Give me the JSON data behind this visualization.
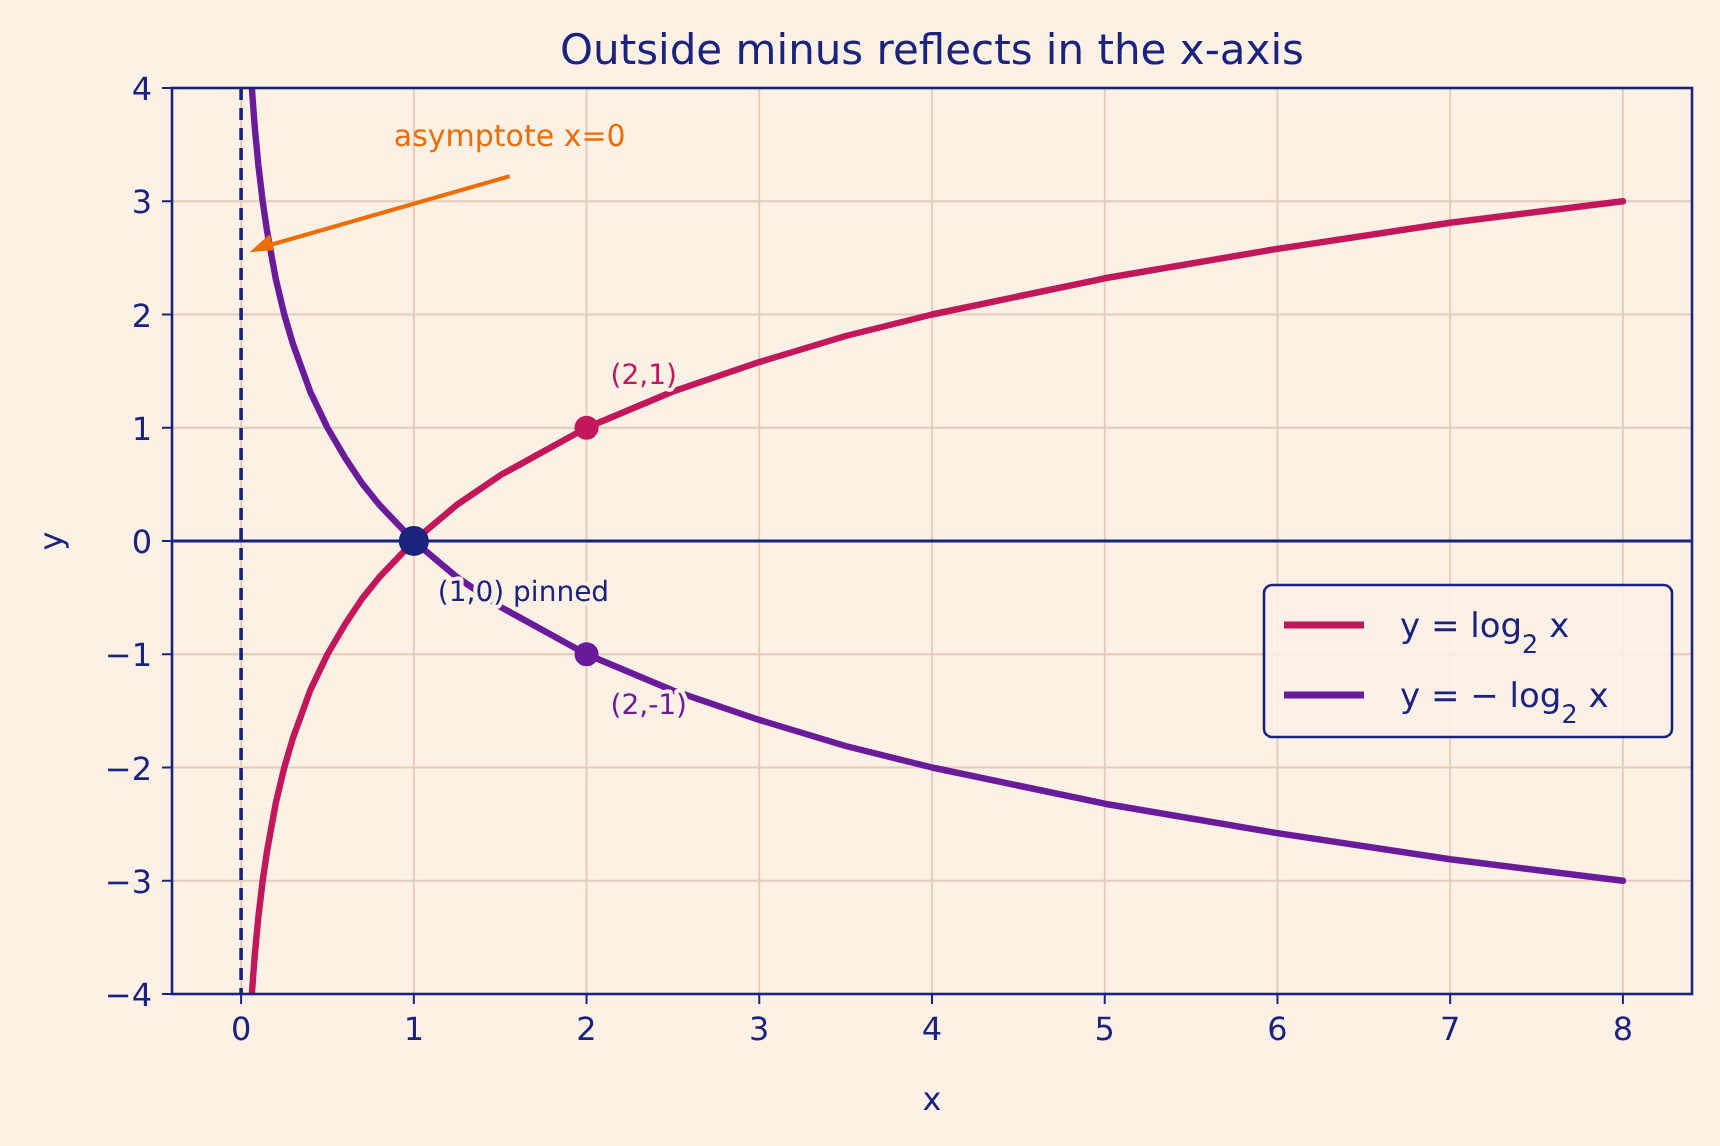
{
  "chart_data": {
    "type": "line",
    "title": "Outside minus reflects in the x-axis",
    "xlabel": "x",
    "ylabel": "y",
    "xlim": [
      -0.4,
      8.4
    ],
    "ylim": [
      -4,
      4
    ],
    "xticks": [
      0,
      1,
      2,
      3,
      4,
      5,
      6,
      7,
      8
    ],
    "yticks": [
      -4,
      -3,
      -2,
      -1,
      0,
      1,
      2,
      3,
      4
    ],
    "grid": true,
    "legend": "right",
    "series": [
      {
        "name": "y = log$_{2}$ x",
        "color": "#c2185b",
        "x": [
          0.0625,
          0.07,
          0.08,
          0.1,
          0.125,
          0.15,
          0.2,
          0.25,
          0.3,
          0.4,
          0.5,
          0.6,
          0.7,
          0.8,
          1,
          1.25,
          1.5,
          2,
          2.5,
          3,
          3.5,
          4,
          5,
          6,
          7,
          8
        ],
        "values": [
          -4,
          -3.84,
          -3.64,
          -3.32,
          -3,
          -2.74,
          -2.32,
          -2,
          -1.74,
          -1.32,
          -1,
          -0.74,
          -0.51,
          -0.32,
          0,
          0.32,
          0.58,
          1,
          1.32,
          1.58,
          1.81,
          2,
          2.32,
          2.58,
          2.81,
          3
        ]
      },
      {
        "name": "y = − log$_{2}$ x",
        "color": "#6a1b9a",
        "x": [
          0.0625,
          0.07,
          0.08,
          0.1,
          0.125,
          0.15,
          0.2,
          0.25,
          0.3,
          0.4,
          0.5,
          0.6,
          0.7,
          0.8,
          1,
          1.25,
          1.5,
          2,
          2.5,
          3,
          3.5,
          4,
          5,
          6,
          7,
          8
        ],
        "values": [
          4,
          3.84,
          3.64,
          3.32,
          3,
          2.74,
          2.32,
          2,
          1.74,
          1.32,
          1,
          0.74,
          0.51,
          0.32,
          0,
          -0.32,
          -0.58,
          -1,
          -1.32,
          -1.58,
          -1.81,
          -2,
          -2.32,
          -2.58,
          -2.81,
          -3
        ]
      },
      {
        "type": "scatter",
        "color": "#c2185b",
        "x": [
          2
        ],
        "values": [
          1
        ]
      },
      {
        "type": "scatter",
        "color": "#6a1b9a",
        "x": [
          2
        ],
        "values": [
          -1
        ]
      },
      {
        "type": "scatter",
        "color": "#1a237e",
        "x": [
          1
        ],
        "values": [
          0
        ]
      }
    ],
    "ref_lines": [
      {
        "axis": "x",
        "value": 0,
        "color": "#1a237e",
        "line_style": "dashed"
      },
      {
        "axis": "y",
        "value": 0,
        "color": "#1a237e",
        "line_style": "solid"
      }
    ],
    "annotations": [
      {
        "text": "asymptote x=0",
        "x": 0.05,
        "y": 2.55
      },
      {
        "text": "(2,1)",
        "x": 2,
        "y": 1
      },
      {
        "text": "(1,0) pinned",
        "x": 1,
        "y": 0
      },
      {
        "text": "(2,-1)",
        "x": 2,
        "y": -1
      }
    ]
  }
}
